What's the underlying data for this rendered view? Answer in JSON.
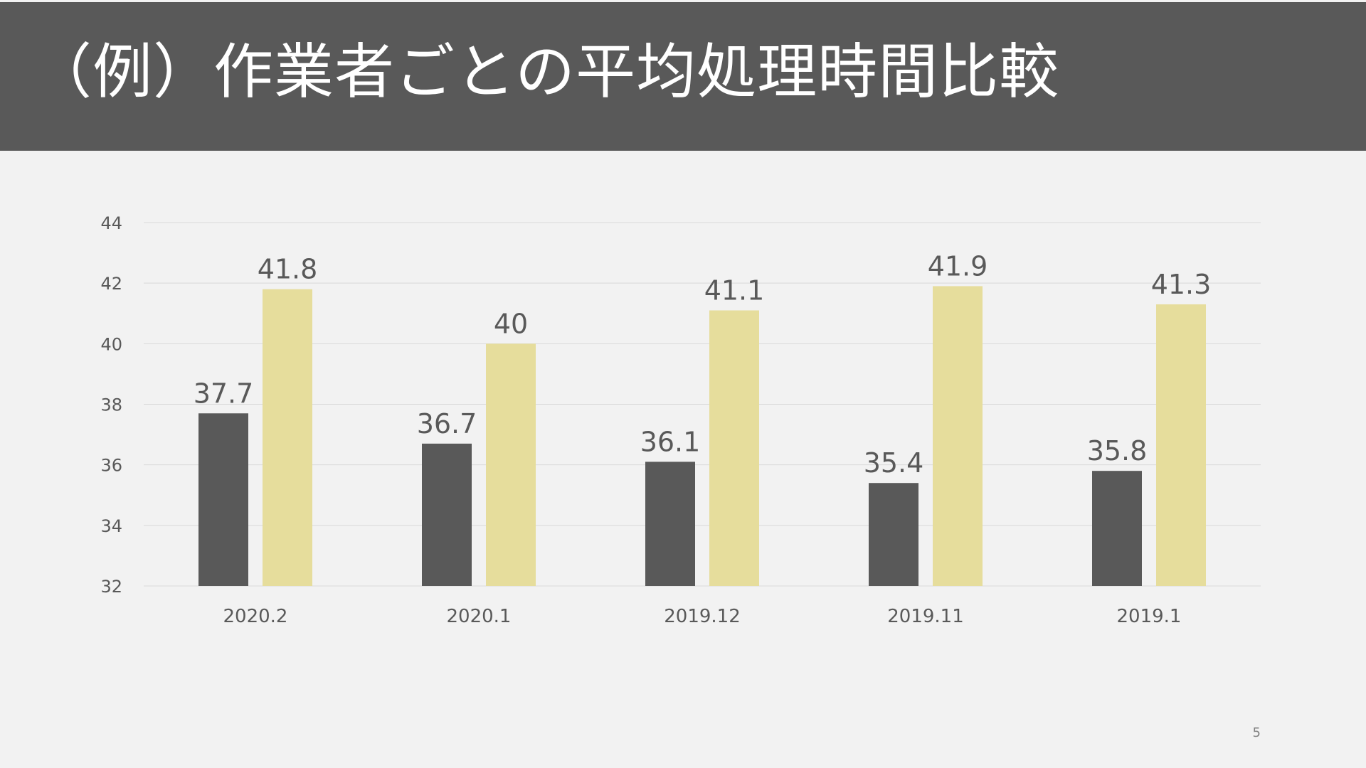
{
  "slide": {
    "title": "（例）作業者ごとの平均処理時間比較",
    "page_number": "5"
  },
  "colors": {
    "title_bar": "#595959",
    "background": "#f2f2f2",
    "series_dark": "#595959",
    "series_light": "#e6dd9c",
    "gridline": "#d9d9d9",
    "tick_text": "#595959"
  },
  "chart_data": {
    "type": "bar",
    "categories": [
      "2020.2",
      "2020.1",
      "2019.12",
      "2019.11",
      "2019.1"
    ],
    "series": [
      {
        "color": "#595959",
        "values": [
          37.7,
          36.7,
          36.1,
          35.4,
          35.8
        ]
      },
      {
        "color": "#e6dd9c",
        "values": [
          41.8,
          40,
          41.1,
          41.9,
          41.3
        ]
      }
    ],
    "data_labels": [
      [
        "37.7",
        "36.7",
        "36.1",
        "35.4",
        "35.8"
      ],
      [
        "41.8",
        "40",
        "41.1",
        "41.9",
        "41.3"
      ]
    ],
    "ylim": [
      32,
      44
    ],
    "yticks": [
      "32",
      "34",
      "36",
      "38",
      "40",
      "42",
      "44"
    ],
    "grid": true,
    "legend": "none",
    "title": "",
    "xlabel": "",
    "ylabel": ""
  }
}
